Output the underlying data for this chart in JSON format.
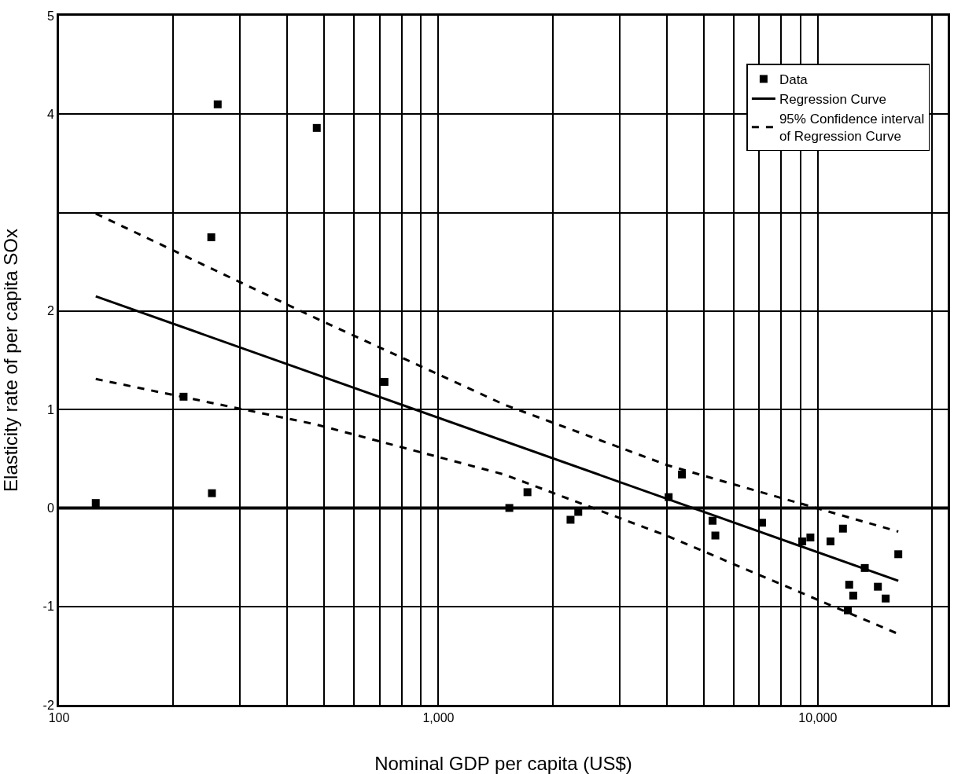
{
  "chart_data": {
    "type": "scatter",
    "xlabel": "Nominal GDP per capita (US$)",
    "ylabel": "Elasticity rate of per capita SOx",
    "log": "x",
    "grid": true,
    "legend": "top right",
    "xlim": [
      100,
      22000
    ],
    "xticks": [
      {
        "value": 100,
        "label": "100"
      },
      {
        "value": 200,
        "label": null
      },
      {
        "value": 300,
        "label": null
      },
      {
        "value": 400,
        "label": null
      },
      {
        "value": 500,
        "label": null
      },
      {
        "value": 600,
        "label": null
      },
      {
        "value": 700,
        "label": null
      },
      {
        "value": 800,
        "label": null
      },
      {
        "value": 900,
        "label": null
      },
      {
        "value": 1000,
        "label": "1,000"
      },
      {
        "value": 2000,
        "label": null
      },
      {
        "value": 3000,
        "label": null
      },
      {
        "value": 4000,
        "label": null
      },
      {
        "value": 5000,
        "label": null
      },
      {
        "value": 6000,
        "label": null
      },
      {
        "value": 7000,
        "label": null
      },
      {
        "value": 8000,
        "label": null
      },
      {
        "value": 9000,
        "label": null
      },
      {
        "value": 10000,
        "label": "10,000"
      },
      {
        "value": 20000,
        "label": null
      }
    ],
    "ylim": [
      -2,
      5
    ],
    "yticks": [
      -2,
      -1,
      0,
      1,
      2,
      {
        "value": 3,
        "label": null
      },
      4,
      5
    ],
    "ref_lines": [
      {
        "axis": "y",
        "value": 0,
        "color": "#000000"
      }
    ],
    "series": [
      {
        "name": "Data",
        "marker": "square",
        "color": "#000000",
        "x": [
          125,
          213,
          252,
          253,
          262,
          478,
          721,
          1538,
          1717,
          2230,
          2337,
          4045,
          4385,
          5280,
          5370,
          7130,
          9100,
          9560,
          10800,
          11650,
          12100,
          12400,
          12000,
          13300,
          14400,
          15100,
          16300
        ],
        "values": [
          0.05,
          1.13,
          2.75,
          0.15,
          4.1,
          3.86,
          1.28,
          0.0,
          0.16,
          -0.12,
          -0.04,
          0.11,
          0.34,
          -0.13,
          -0.28,
          -0.15,
          -0.34,
          -0.3,
          -0.34,
          -0.21,
          -0.78,
          -0.89,
          -1.04,
          -0.61,
          -0.8,
          -0.92,
          -0.47
        ]
      },
      {
        "name": "Regression Curve",
        "type": "line",
        "line_style": "solid",
        "marker": "none",
        "color": "#000000",
        "x": [
          125,
          16300
        ],
        "values": [
          2.15,
          -0.74
        ]
      },
      {
        "name": "95% Confidence interval\nof Regression Curve",
        "type": "line",
        "line_style": "dashed",
        "marker": "none",
        "color": "#000000",
        "x": [
          125,
          474,
          1490,
          4045,
          16300
        ],
        "values": [
          2.99,
          1.93,
          1.05,
          0.43,
          -0.24
        ]
      },
      {
        "type": "line",
        "line_style": "dashed",
        "marker": "none",
        "color": "#000000",
        "x": [
          125,
          474,
          1490,
          4045,
          16300
        ],
        "values": [
          1.31,
          0.85,
          0.34,
          -0.29,
          -1.28
        ]
      }
    ]
  }
}
